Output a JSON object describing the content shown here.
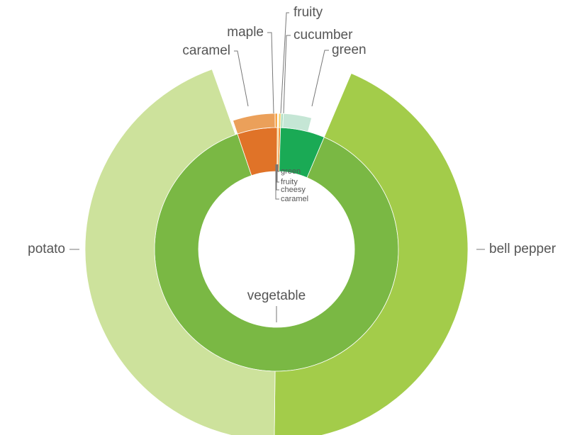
{
  "chart_data": {
    "type": "sunburst",
    "segments": [
      {
        "name": "vegetable",
        "value": 317,
        "color": "#7ab844",
        "children": [
          {
            "name": "bell pepper",
            "value": 157,
            "color": "#a3cc4a"
          },
          {
            "name": "potato",
            "value": 159,
            "color": "#cde29c"
          }
        ]
      },
      {
        "name": "caramel",
        "value": 19,
        "color": "#e07328",
        "children": [
          {
            "name": "caramel",
            "value": 18,
            "color": "#eba05a"
          },
          {
            "name": "maple",
            "value": 1,
            "color": "#f5a040"
          }
        ]
      },
      {
        "name": "cheesy",
        "value": 0.5,
        "color": "#f0c030",
        "children": []
      },
      {
        "name": "fruity",
        "value": 1,
        "color": "#f09030",
        "children": [
          {
            "name": "fruity",
            "value": 1,
            "color": "#f5d070"
          }
        ]
      },
      {
        "name": "green",
        "value": 21,
        "color": "#1aaa55",
        "children": [
          {
            "name": "cucumber",
            "value": 1,
            "color": "#b0e0c0"
          },
          {
            "name": "green",
            "value": 12,
            "color": "#c5e6d5"
          }
        ]
      }
    ]
  }
}
